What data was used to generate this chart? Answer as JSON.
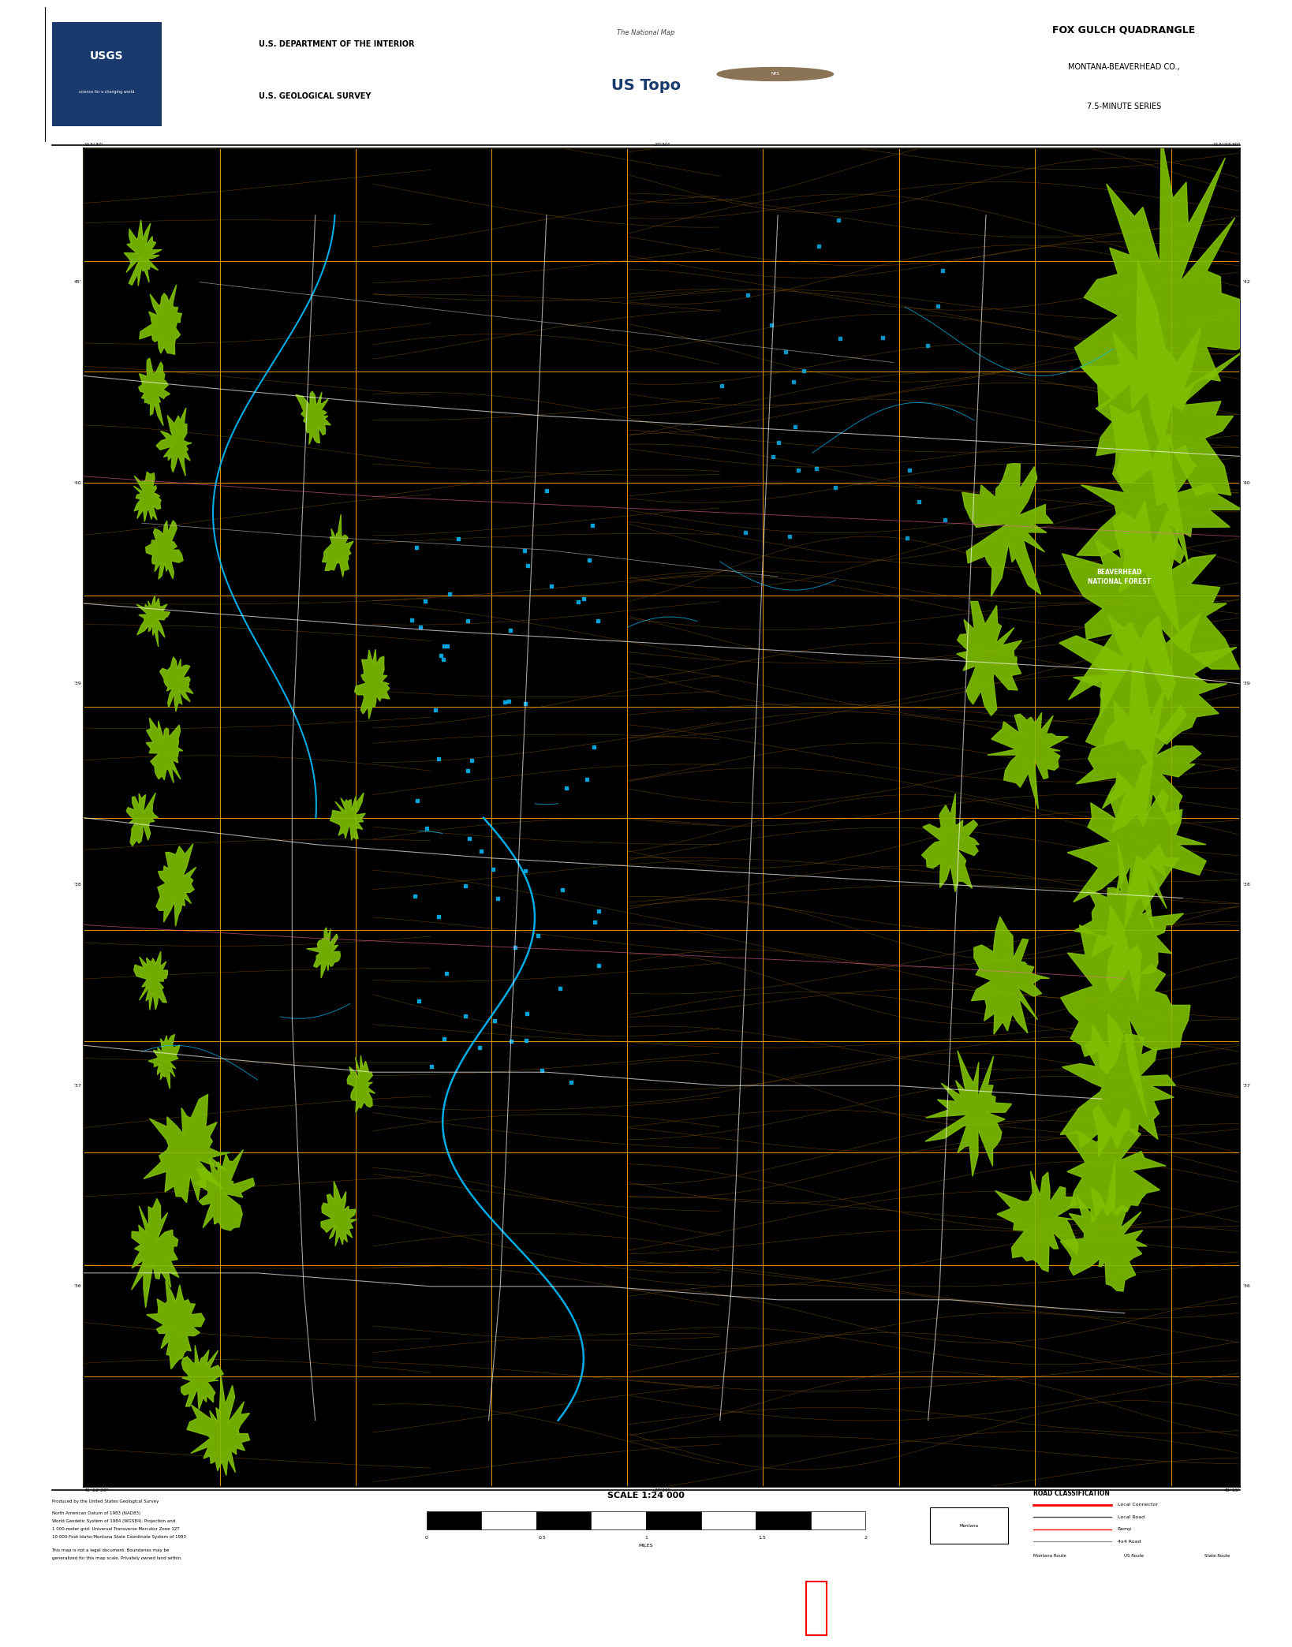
{
  "title": "FOX GULCH QUADRANGLE",
  "subtitle1": "MONTANA-BEAVERHEAD CO.,",
  "subtitle2": "7.5-MINUTE SERIES",
  "dept_line1": "U.S. DEPARTMENT OF THE INTERIOR",
  "dept_line2": "U.S. GEOLOGICAL SURVEY",
  "scale_text": "SCALE 1:24 000",
  "map_bg": "#000000",
  "page_bg": "#ffffff",
  "contour_color": "#8B5A00",
  "water_color": "#00BFFF",
  "water_fill": "#1E90FF",
  "forest_color": "#7FBF00",
  "road_white": "#ffffff",
  "road_gray": "#aaaaaa",
  "road_pink": "#ff69b4",
  "grid_color": "#FFA500",
  "red_rect_color": "#ff0000",
  "black_banner": "#000000",
  "usgs_blue": "#1a3a6e"
}
